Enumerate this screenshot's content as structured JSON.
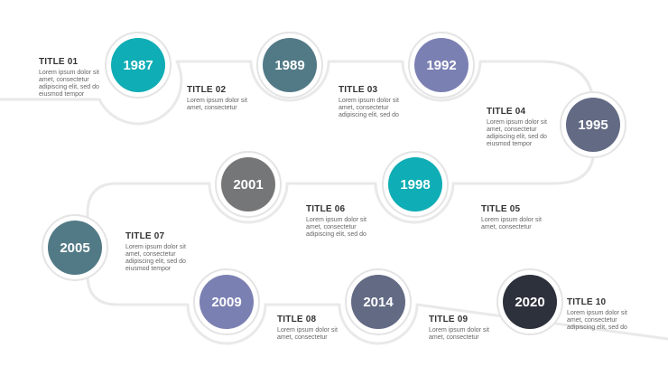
{
  "milestones": [
    {
      "year": "1987",
      "title": "TITLE 01",
      "desc": "Lorem ipsum dolor sit\namet, consectetur\nadipiscing elit, sed do\neiusmod tempor",
      "color": "#0fadb5"
    },
    {
      "year": "1989",
      "title": "TITLE 02",
      "desc": "Lorem ipsum dolor sit\namet, consectetur",
      "color": "#527a86"
    },
    {
      "year": "1992",
      "title": "TITLE 03",
      "desc": "Lorem ipsum dolor sit\namet, consectetur\nadipiscing elit, sed do",
      "color": "#7b80b3"
    },
    {
      "year": "1995",
      "title": "TITLE 04",
      "desc": "Lorem ipsum dolor sit\namet, consectetur\nadipiscing elit, sed do\neiusmod tempor",
      "color": "#626a84"
    },
    {
      "year": "1998",
      "title": "TITLE 05",
      "desc": "Lorem ipsum dolor sit\namet, consectetur",
      "color": "#0fadb5"
    },
    {
      "year": "2001",
      "title": "TITLE 06",
      "desc": "Lorem ipsum dolor sit\namet, consectetur\nadipiscing elit, sed do",
      "color": "#757678"
    },
    {
      "year": "2005",
      "title": "TITLE 07",
      "desc": "Lorem ipsum dolor sit\namet, consectetur\nadipiscing elit, sed do\neiusmod tempor",
      "color": "#527a86"
    },
    {
      "year": "2009",
      "title": "TITLE 08",
      "desc": "Lorem ipsum dolor sit\namet, consectetur",
      "color": "#7b80b3"
    },
    {
      "year": "2014",
      "title": "TITLE 09",
      "desc": "Lorem ipsum dolor sit\namet, consectetur",
      "color": "#626a84"
    },
    {
      "year": "2020",
      "title": "TITLE 10",
      "desc": "Lorem ipsum dolor sit\namet, consectetur\nadipiscing elit, sed do",
      "color": "#2d313c"
    }
  ]
}
